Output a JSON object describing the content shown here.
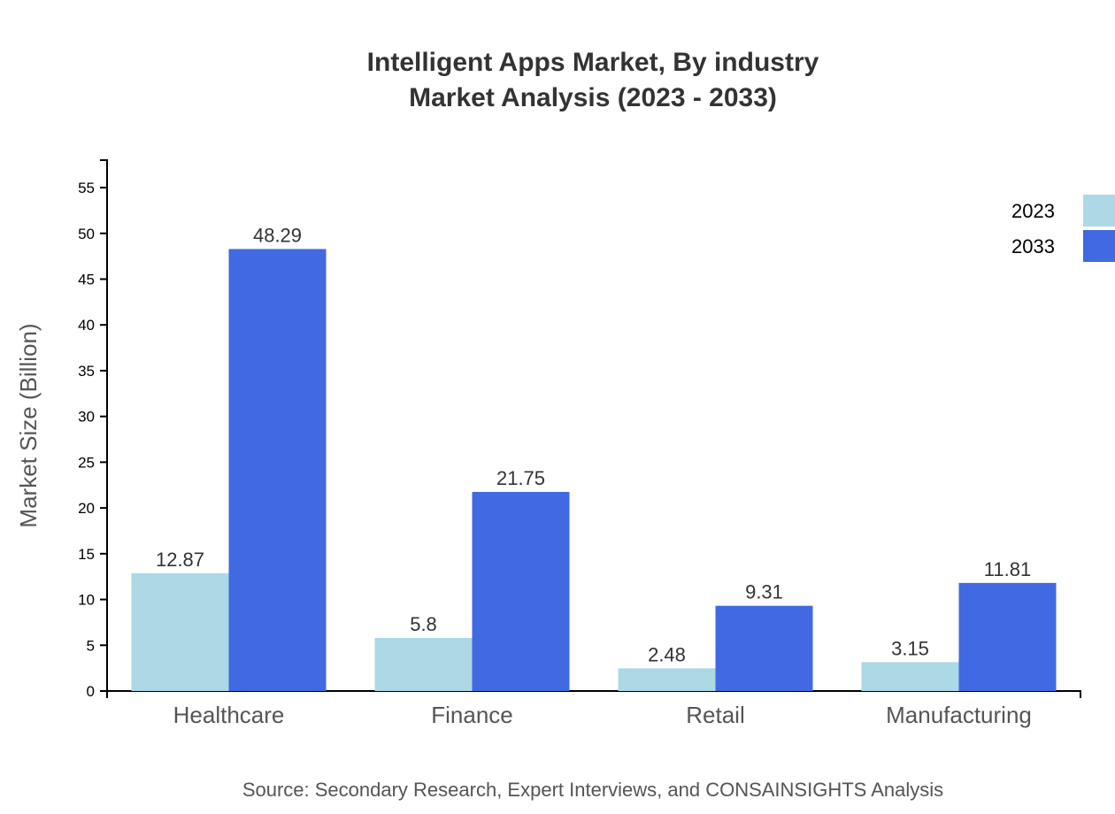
{
  "chart_data": {
    "type": "bar",
    "title": "Intelligent Apps Market, By industry",
    "subtitle": "Market Analysis (2023 - 2033)",
    "ylabel": "Market Size (Billion)",
    "xlabel": "",
    "categories": [
      "Healthcare",
      "Finance",
      "Retail",
      "Manufacturing"
    ],
    "series": [
      {
        "name": "2023",
        "color": "#add8e6",
        "values": [
          12.87,
          5.8,
          2.48,
          3.15
        ]
      },
      {
        "name": "2033",
        "color": "#4169e1",
        "values": [
          48.29,
          21.75,
          9.31,
          11.81
        ]
      }
    ],
    "ylim": [
      0,
      58
    ],
    "yticks": [
      0,
      5,
      10,
      15,
      20,
      25,
      30,
      35,
      40,
      45,
      50,
      55
    ],
    "grid": false,
    "legend_position": "top-right",
    "source": "Source: Secondary Research, Expert Interviews, and CONSAINSIGHTS Analysis"
  }
}
